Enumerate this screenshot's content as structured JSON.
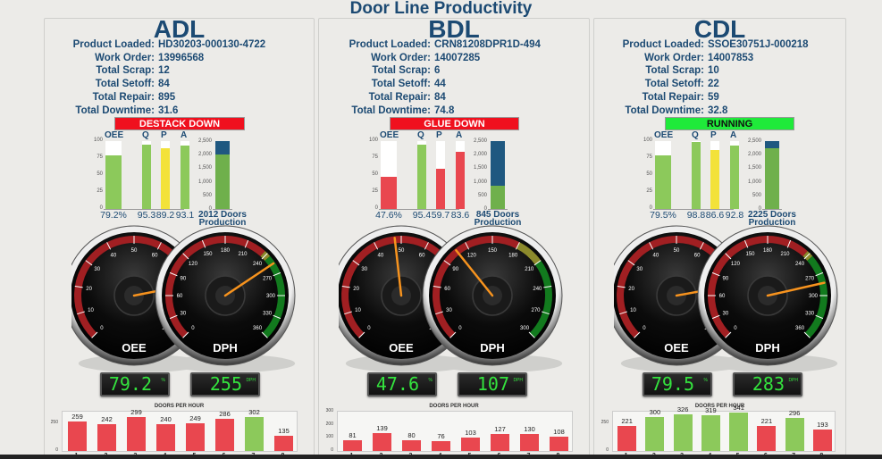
{
  "title": "Door Line Productivity",
  "colors": {
    "title_blue": "#1c4a73",
    "status_down": "#f0101e",
    "status_running": "#1fea3a",
    "bar_green": "#8cc95b",
    "bar_yellow": "#f3e23a",
    "bar_red": "#e9474f",
    "prod_green": "#6fb04c",
    "prod_blue": "#1f5880",
    "digital_green": "#34e33e"
  },
  "info_labels": {
    "product": "Product Loaded:",
    "work_order": "Work Order:",
    "scrap": "Total Scrap:",
    "setoff": "Total Setoff:",
    "repair": "Total Repair:",
    "downtime": "Total Downtime:"
  },
  "kpi_heads": [
    "OEE",
    "Q",
    "P",
    "A"
  ],
  "kpi_axis": [
    "100",
    "75",
    "50",
    "25",
    "0"
  ],
  "prod_axis": [
    "2,500",
    "2,000",
    "1,500",
    "1,000",
    "500",
    "0"
  ],
  "gauge_labels": {
    "oee": "OEE",
    "dph": "DPH"
  },
  "dph_title": "DOORS PER HOUR",
  "digital_units": {
    "oee": "%",
    "dph": "DPH"
  },
  "lines": [
    {
      "name": "ADL",
      "product": "HD30203-000130-4722",
      "work_order": "13996568",
      "scrap": "12",
      "setoff": "84",
      "repair": "895",
      "downtime": "31.6",
      "status": "DESTACK DOWN",
      "status_color": "#f0101e",
      "status_text_color": "#ffffff",
      "kpi": [
        {
          "label": "OEE",
          "value": 79.2,
          "display": "79.2%",
          "color": "#8cc95b"
        },
        {
          "label": "Q",
          "value": 95.3,
          "display": "95.3",
          "color": "#8cc95b"
        },
        {
          "label": "P",
          "value": 89.2,
          "display": "89.2",
          "color": "#f3e23a"
        },
        {
          "label": "A",
          "value": 93.1,
          "display": "93.1",
          "color": "#8cc95b"
        }
      ],
      "production": 2012,
      "production_target": 2500,
      "production_label": "2012 Doors",
      "production_sub": "Production",
      "oee_digital": "79.2",
      "dph_digital": "255",
      "oee_gauge": 79.2,
      "dph_gauge": 255,
      "dph_max": 360,
      "dph_ticks": [
        "0",
        "30",
        "60",
        "90",
        "120",
        "150",
        "180",
        "210",
        "240",
        "270",
        "300",
        "330",
        "360"
      ],
      "oee_ticks": [
        "0",
        "10",
        "20",
        "30",
        "40",
        "50",
        "60",
        "70",
        "80",
        "90",
        "100"
      ],
      "dph_yticks": [
        "250",
        "0"
      ],
      "dph_ymax": 350,
      "hourly": [
        {
          "hour": "1",
          "value": 259,
          "color": "#e9474f"
        },
        {
          "hour": "2",
          "value": 242,
          "color": "#e9474f"
        },
        {
          "hour": "3",
          "value": 299,
          "color": "#e9474f"
        },
        {
          "hour": "4",
          "value": 240,
          "color": "#e9474f"
        },
        {
          "hour": "5",
          "value": 249,
          "color": "#e9474f"
        },
        {
          "hour": "6",
          "value": 286,
          "color": "#e9474f"
        },
        {
          "hour": "7",
          "value": 302,
          "color": "#8cc95b"
        },
        {
          "hour": "8",
          "value": 135,
          "color": "#e9474f"
        }
      ]
    },
    {
      "name": "BDL",
      "product": "CRN81208DPR1D-494",
      "work_order": "14007285",
      "scrap": "6",
      "setoff": "44",
      "repair": "84",
      "downtime": "74.8",
      "status": "GLUE DOWN",
      "status_color": "#f0101e",
      "status_text_color": "#ffffff",
      "kpi": [
        {
          "label": "OEE",
          "value": 47.6,
          "display": "47.6%",
          "color": "#e9474f"
        },
        {
          "label": "Q",
          "value": 95.4,
          "display": "95.4",
          "color": "#8cc95b"
        },
        {
          "label": "P",
          "value": 59.7,
          "display": "59.7",
          "color": "#e9474f"
        },
        {
          "label": "A",
          "value": 83.6,
          "display": "83.6",
          "color": "#e9474f"
        }
      ],
      "production": 845,
      "production_target": 2500,
      "production_label": "845 Doors",
      "production_sub": "Production",
      "oee_digital": "47.6",
      "dph_digital": "107",
      "oee_gauge": 47.6,
      "dph_gauge": 107,
      "dph_max": 300,
      "dph_ticks": [
        "0",
        "30",
        "60",
        "90",
        "120",
        "150",
        "180",
        "210",
        "240",
        "270",
        "300"
      ],
      "oee_ticks": [
        "0",
        "10",
        "20",
        "30",
        "40",
        "50",
        "60",
        "70",
        "80",
        "90",
        "100"
      ],
      "dph_yticks": [
        "300",
        "200",
        "100",
        "0"
      ],
      "dph_ymax": 300,
      "hourly": [
        {
          "hour": "1",
          "value": 81,
          "color": "#e9474f"
        },
        {
          "hour": "2",
          "value": 139,
          "color": "#e9474f"
        },
        {
          "hour": "3",
          "value": 80,
          "color": "#e9474f"
        },
        {
          "hour": "4",
          "value": 76,
          "color": "#e9474f"
        },
        {
          "hour": "5",
          "value": 103,
          "color": "#e9474f"
        },
        {
          "hour": "6",
          "value": 127,
          "color": "#e9474f"
        },
        {
          "hour": "7",
          "value": 130,
          "color": "#e9474f"
        },
        {
          "hour": "8",
          "value": 108,
          "color": "#e9474f"
        }
      ]
    },
    {
      "name": "CDL",
      "product": "SSOE30751J-000218",
      "work_order": "14007853",
      "scrap": "10",
      "setoff": "22",
      "repair": "59",
      "downtime": "32.8",
      "status": "RUNNING",
      "status_color": "#1fea3a",
      "status_text_color": "#111111",
      "kpi": [
        {
          "label": "OEE",
          "value": 79.5,
          "display": "79.5%",
          "color": "#8cc95b"
        },
        {
          "label": "Q",
          "value": 98.8,
          "display": "98.8",
          "color": "#8cc95b"
        },
        {
          "label": "P",
          "value": 86.6,
          "display": "86.6",
          "color": "#f3e23a"
        },
        {
          "label": "A",
          "value": 92.8,
          "display": "92.8",
          "color": "#8cc95b"
        }
      ],
      "production": 2225,
      "production_target": 2500,
      "production_label": "2225 Doors",
      "production_sub": "Production",
      "oee_digital": "79.5",
      "dph_digital": "283",
      "oee_gauge": 79.5,
      "dph_gauge": 283,
      "dph_max": 360,
      "dph_ticks": [
        "0",
        "30",
        "60",
        "90",
        "120",
        "150",
        "180",
        "210",
        "240",
        "270",
        "300",
        "330",
        "360"
      ],
      "oee_ticks": [
        "0",
        "10",
        "20",
        "30",
        "40",
        "50",
        "60",
        "70",
        "80",
        "90",
        "100"
      ],
      "dph_yticks": [
        "250",
        "0"
      ],
      "dph_ymax": 350,
      "hourly": [
        {
          "hour": "1",
          "value": 221,
          "color": "#e9474f"
        },
        {
          "hour": "2",
          "value": 300,
          "color": "#8cc95b"
        },
        {
          "hour": "3",
          "value": 326,
          "color": "#8cc95b"
        },
        {
          "hour": "4",
          "value": 319,
          "color": "#8cc95b"
        },
        {
          "hour": "5",
          "value": 341,
          "color": "#8cc95b"
        },
        {
          "hour": "6",
          "value": 221,
          "color": "#e9474f"
        },
        {
          "hour": "7",
          "value": 296,
          "color": "#8cc95b"
        },
        {
          "hour": "8",
          "value": 193,
          "color": "#e9474f"
        }
      ]
    }
  ]
}
